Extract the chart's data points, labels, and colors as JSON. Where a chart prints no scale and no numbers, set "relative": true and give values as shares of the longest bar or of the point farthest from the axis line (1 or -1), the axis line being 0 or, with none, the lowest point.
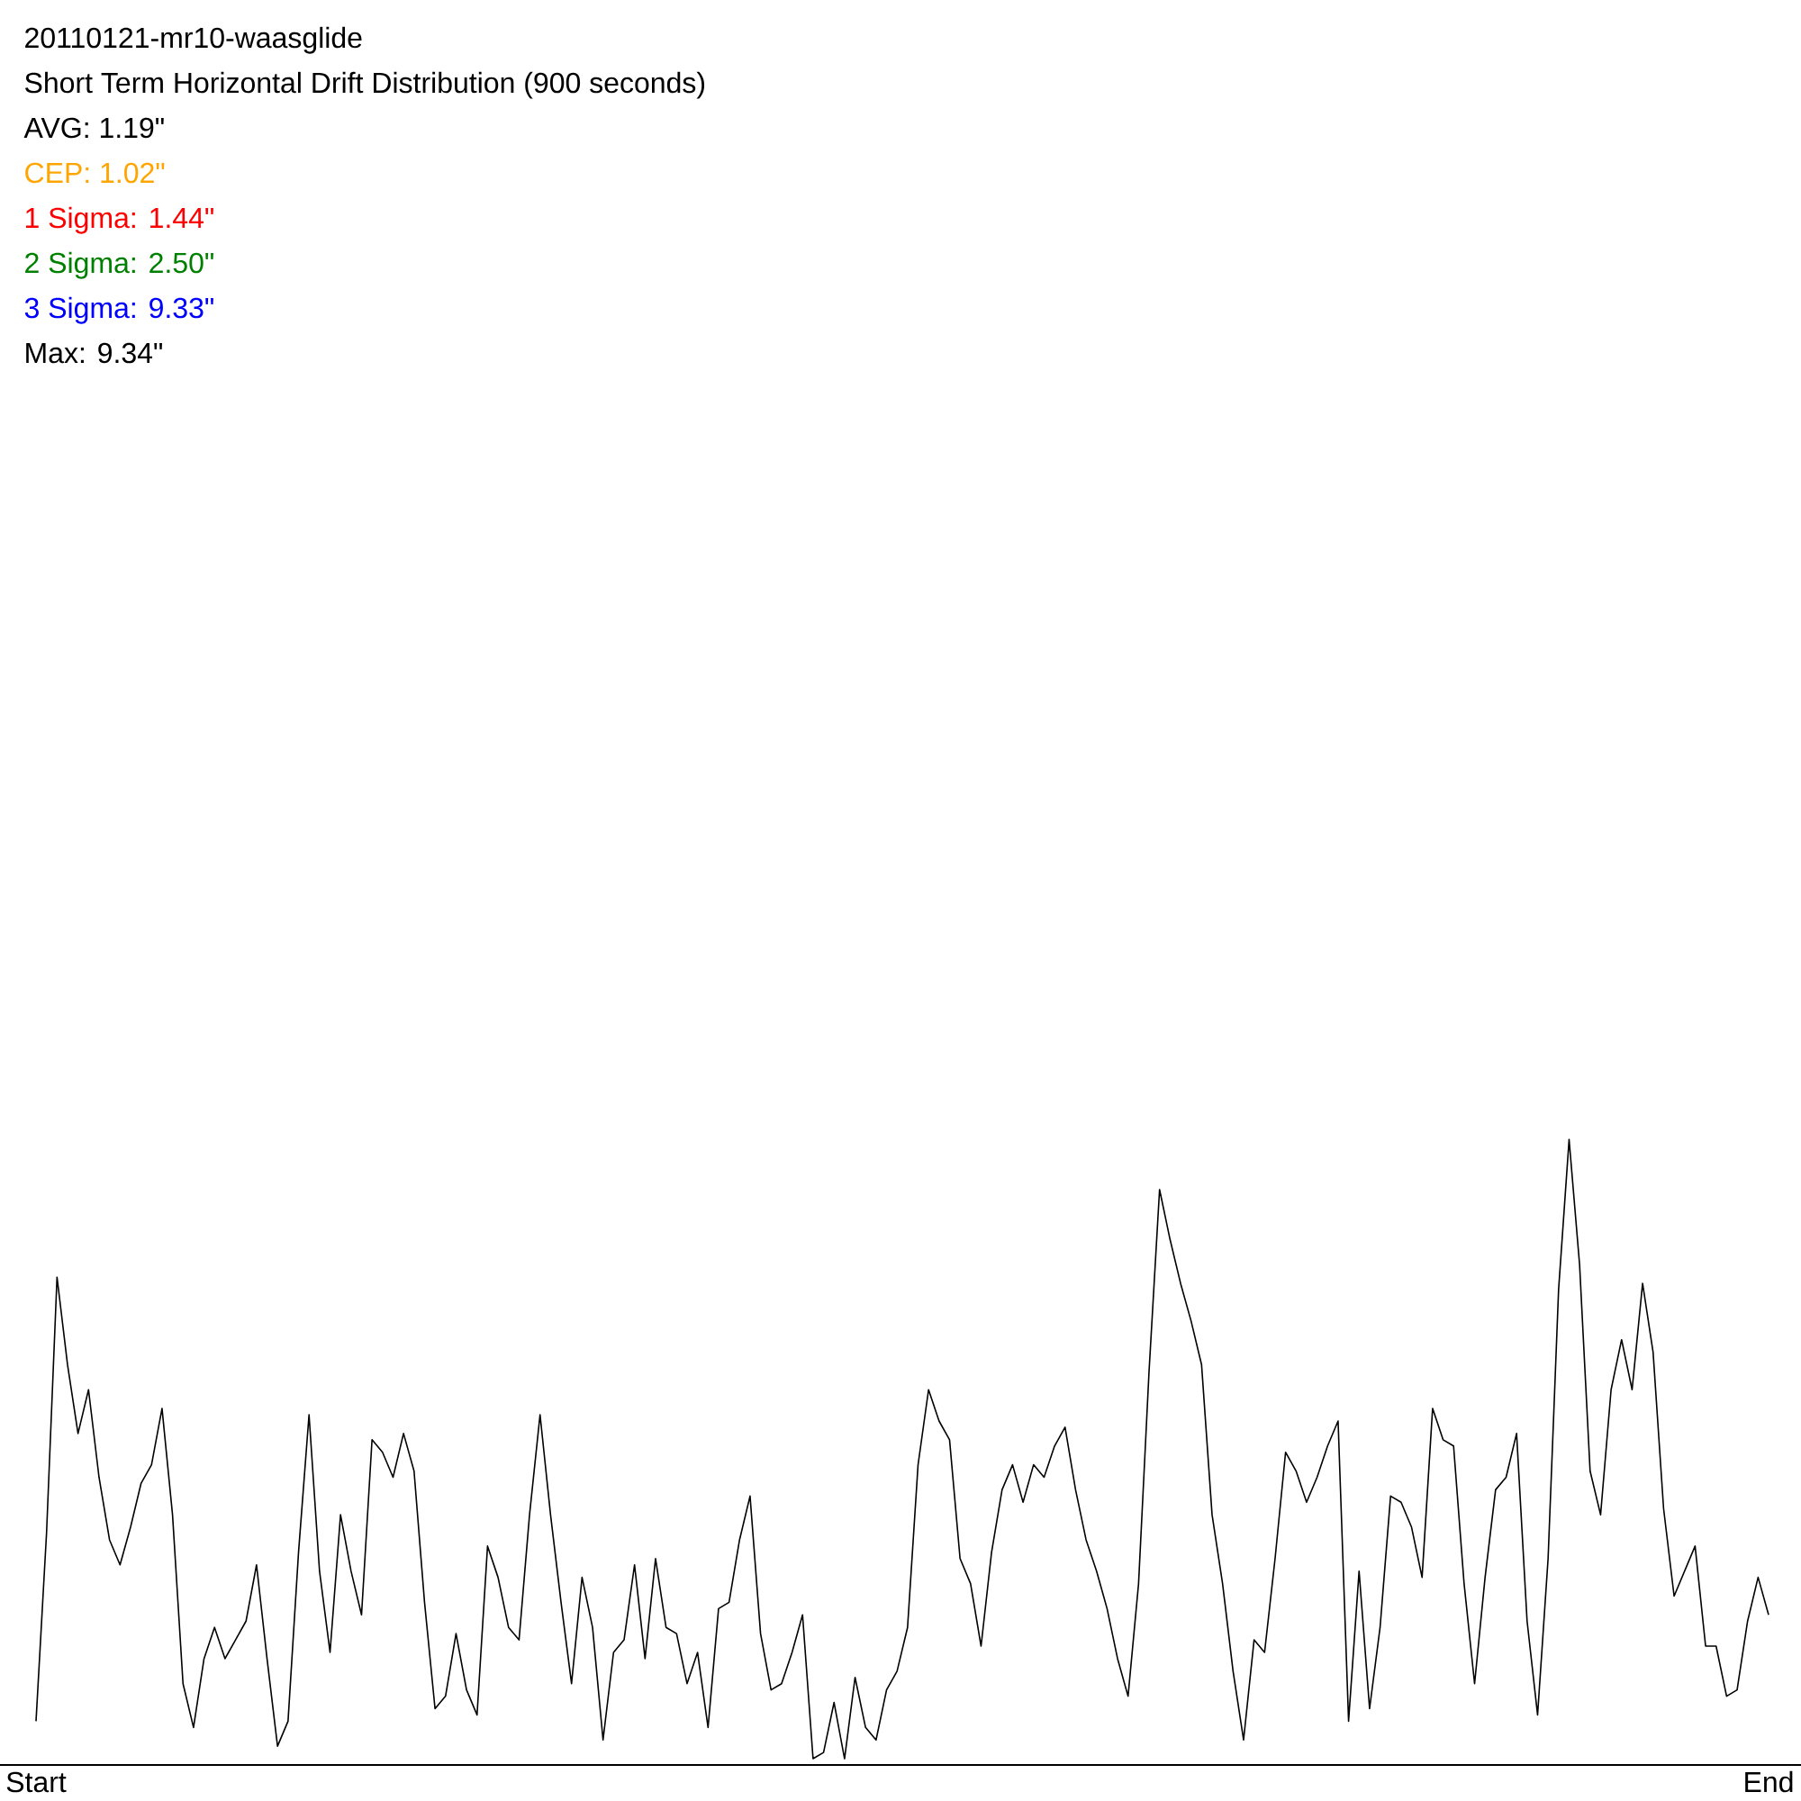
{
  "chart_data": {
    "type": "line",
    "title": "20110121-mr10-waasglide",
    "subtitle": "Short Term Horizontal Drift Distribution (900 seconds)",
    "annotations": [
      "AVG: 1.19\"",
      "CEP: 1.02\"",
      "1 Sigma: 1.44\"",
      "2 Sigma: 2.50\"",
      "3 Sigma: 9.33\"",
      "Max: 9.34\""
    ],
    "relative": true,
    "categories": [
      "Start",
      null,
      null,
      null,
      null,
      null,
      null,
      null,
      null,
      null,
      null,
      null,
      null,
      null,
      null,
      null,
      null,
      null,
      null,
      null,
      null,
      null,
      null,
      null,
      null,
      null,
      null,
      null,
      null,
      null,
      null,
      null,
      null,
      null,
      null,
      null,
      null,
      null,
      null,
      null,
      null,
      null,
      null,
      null,
      null,
      null,
      null,
      null,
      null,
      null,
      null,
      null,
      null,
      null,
      null,
      null,
      null,
      null,
      null,
      null,
      null,
      null,
      null,
      null,
      null,
      null,
      null,
      null,
      null,
      null,
      null,
      null,
      null,
      null,
      null,
      null,
      null,
      null,
      null,
      null,
      null,
      null,
      null,
      null,
      null,
      null,
      null,
      null,
      null,
      null,
      null,
      null,
      null,
      null,
      null,
      null,
      null,
      null,
      null,
      null,
      null,
      null,
      null,
      null,
      null,
      null,
      null,
      null,
      null,
      null,
      null,
      null,
      null,
      null,
      null,
      null,
      null,
      null,
      null,
      null,
      null,
      null,
      null,
      null,
      null,
      null,
      null,
      null,
      null,
      null,
      null,
      null,
      null,
      null,
      null,
      null,
      null,
      null,
      null,
      null,
      null,
      null,
      null,
      null,
      null,
      null,
      null,
      null,
      null,
      null,
      null,
      null,
      null,
      null,
      null,
      null,
      null,
      null,
      null,
      null,
      null,
      null,
      null,
      null,
      null,
      "End"
    ],
    "series": [
      {
        "color": "#000000",
        "values": [
          0.07,
          0.37,
          0.78,
          0.64,
          0.53,
          0.6,
          0.46,
          0.36,
          0.32,
          0.38,
          0.45,
          0.48,
          0.57,
          0.4,
          0.13,
          0.06,
          0.17,
          0.22,
          0.17,
          0.2,
          0.23,
          0.32,
          0.17,
          0.03,
          0.07,
          0.34,
          0.56,
          0.31,
          0.18,
          0.4,
          0.31,
          0.24,
          0.52,
          0.5,
          0.46,
          0.53,
          0.47,
          0.26,
          0.09,
          0.11,
          0.21,
          0.12,
          0.08,
          0.35,
          0.3,
          0.22,
          0.2,
          0.4,
          0.56,
          0.4,
          0.26,
          0.13,
          0.3,
          0.22,
          0.04,
          0.18,
          0.2,
          0.32,
          0.17,
          0.33,
          0.22,
          0.21,
          0.13,
          0.18,
          0.06,
          0.25,
          0.26,
          0.36,
          0.43,
          0.21,
          0.12,
          0.13,
          0.18,
          0.24,
          0.01,
          0.02,
          0.1,
          0.01,
          0.14,
          0.06,
          0.04,
          0.12,
          0.15,
          0.22,
          0.48,
          0.6,
          0.55,
          0.52,
          0.33,
          0.29,
          0.19,
          0.34,
          0.44,
          0.48,
          0.42,
          0.48,
          0.46,
          0.51,
          0.54,
          0.44,
          0.36,
          0.31,
          0.25,
          0.17,
          0.11,
          0.29,
          0.63,
          0.92,
          0.84,
          0.77,
          0.71,
          0.64,
          0.4,
          0.29,
          0.15,
          0.04,
          0.2,
          0.18,
          0.33,
          0.5,
          0.47,
          0.42,
          0.46,
          0.51,
          0.55,
          0.07,
          0.31,
          0.09,
          0.22,
          0.43,
          0.42,
          0.38,
          0.3,
          0.57,
          0.52,
          0.51,
          0.29,
          0.13,
          0.3,
          0.44,
          0.46,
          0.53,
          0.23,
          0.08,
          0.33,
          0.76,
          1.0,
          0.8,
          0.47,
          0.4,
          0.6,
          0.68,
          0.6,
          0.77,
          0.66,
          0.41,
          0.27,
          0.31,
          0.35,
          0.19,
          0.19,
          0.11,
          0.12,
          0.23,
          0.3,
          0.24
        ]
      }
    ]
  }
}
